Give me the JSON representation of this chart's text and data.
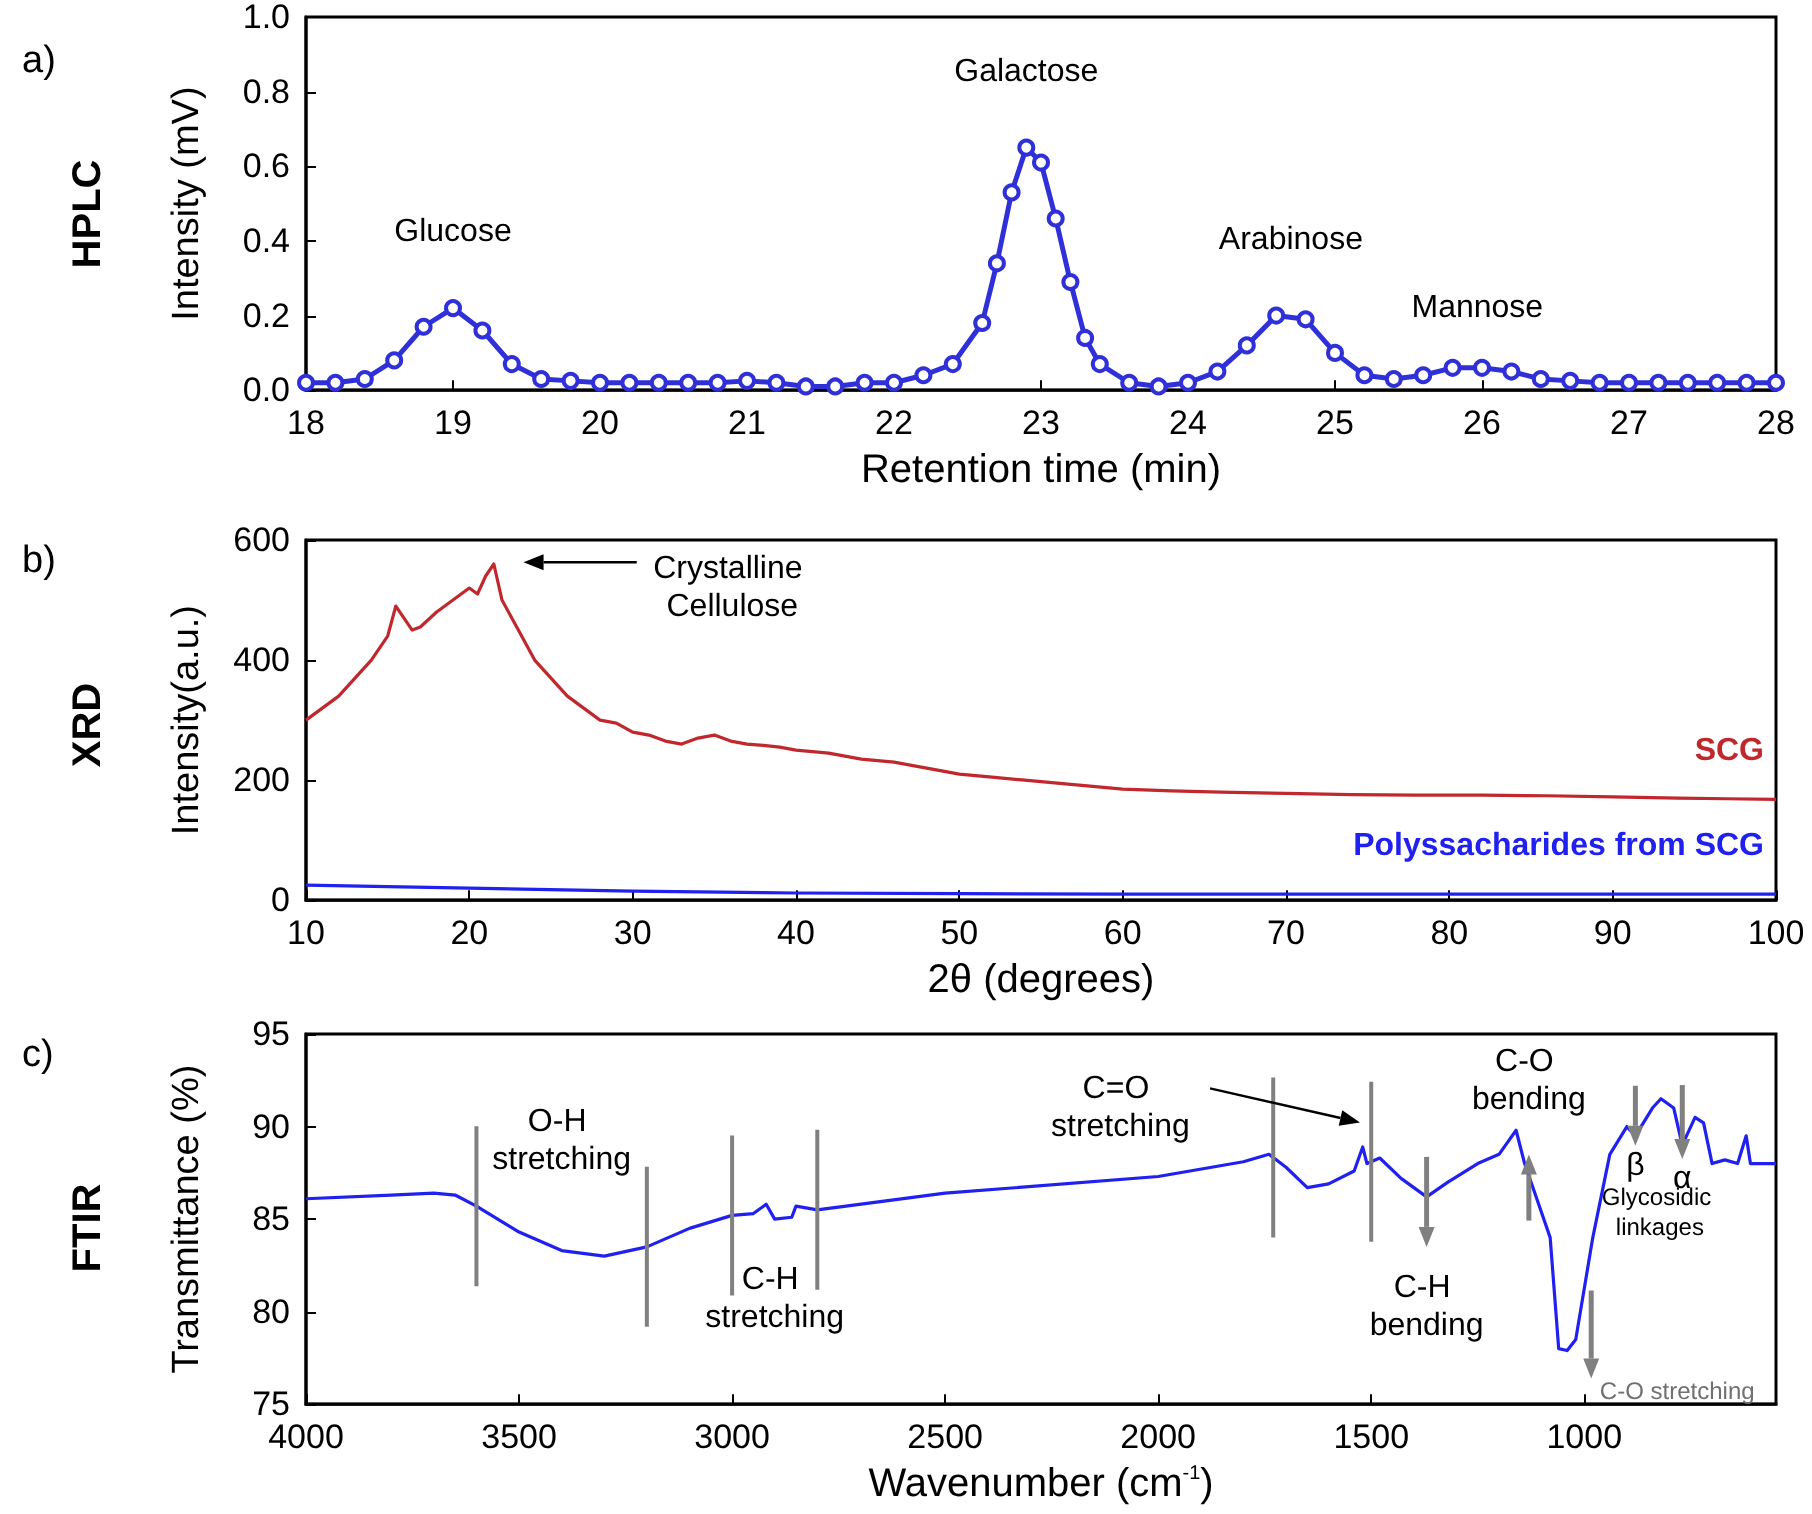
{
  "chart_data": [
    {
      "type": "line",
      "title": "a)",
      "subtitle": "HPLC",
      "xlabel": "Retention time (min)",
      "ylabel": "Intensity (mV)",
      "marker": "circle",
      "legend": false,
      "xlim": [
        18,
        28
      ],
      "xticks": [
        18,
        19,
        20,
        21,
        22,
        23,
        24,
        25,
        26,
        27,
        28
      ],
      "ylim": [
        0,
        1
      ],
      "yticks": [
        {
          "value": 0,
          "label": "0.0"
        },
        0.2,
        0.4,
        0.6,
        0.8,
        {
          "value": 1,
          "label": "1.0"
        }
      ],
      "series": [
        {
          "color": "#3030d8",
          "x": [
            18,
            18.2,
            18.4,
            18.6,
            18.8,
            19,
            19.2,
            19.4,
            19.6,
            19.8,
            20,
            20.2,
            20.4,
            20.6,
            20.8,
            21,
            21.2,
            21.4,
            21.6,
            21.8,
            22,
            22.2,
            22.4,
            22.6,
            22.7,
            22.8,
            22.9,
            23,
            23.1,
            23.2,
            23.3,
            23.4,
            23.6,
            23.8,
            24,
            24.2,
            24.4,
            24.6,
            24.8,
            25,
            25.2,
            25.4,
            25.6,
            25.8,
            26,
            26.2,
            26.4,
            26.6,
            26.8,
            27,
            27.2,
            27.4,
            27.6,
            27.8,
            28
          ],
          "values": [
            0.02,
            0.02,
            0.03,
            0.08,
            0.17,
            0.22,
            0.16,
            0.07,
            0.03,
            0.025,
            0.02,
            0.02,
            0.02,
            0.02,
            0.02,
            0.025,
            0.02,
            0.01,
            0.01,
            0.02,
            0.02,
            0.04,
            0.07,
            0.18,
            0.34,
            0.53,
            0.65,
            0.61,
            0.46,
            0.29,
            0.14,
            0.07,
            0.02,
            0.01,
            0.02,
            0.05,
            0.12,
            0.2,
            0.19,
            0.1,
            0.04,
            0.03,
            0.04,
            0.06,
            0.06,
            0.05,
            0.03,
            0.025,
            0.02,
            0.02,
            0.02,
            0.02,
            0.02,
            0.02,
            0.02
          ]
        }
      ],
      "annotations": [
        {
          "text": "Glucose",
          "x": 19,
          "y": 0.22
        },
        {
          "text": "Galactose",
          "x": 22.9,
          "y": 0.65
        },
        {
          "text": "Arabinose",
          "x": 24.7,
          "y": 0.2
        },
        {
          "text": "Mannose",
          "x": 25.9,
          "y": 0.06
        }
      ]
    },
    {
      "type": "line",
      "title": "b)",
      "subtitle": "XRD",
      "xlabel": "2θ (degrees)",
      "ylabel": "Intensity(a.u.)",
      "legend": false,
      "xlim": [
        10,
        100
      ],
      "xticks": [
        10,
        20,
        30,
        40,
        50,
        60,
        70,
        80,
        90,
        100
      ],
      "ylim": [
        0,
        600
      ],
      "yticks": [
        0,
        200,
        400,
        600
      ],
      "series": [
        {
          "name": "SCG",
          "color": "#c0282d",
          "x": [
            10,
            11,
            12,
            13,
            14,
            15,
            15.5,
            16,
            16.5,
            17,
            18,
            19,
            20,
            20.5,
            21,
            21.5,
            22,
            23,
            24,
            25,
            26,
            27,
            28,
            29,
            30,
            31,
            32,
            33,
            34,
            35,
            36,
            37,
            38,
            39,
            40,
            42,
            44,
            46,
            48,
            50,
            52,
            54,
            56,
            58,
            60,
            63,
            66,
            70,
            74,
            78,
            82,
            86,
            90,
            94,
            97,
            100
          ],
          "values": [
            300,
            320,
            340,
            370,
            400,
            440,
            490,
            470,
            450,
            455,
            480,
            500,
            520,
            510,
            540,
            560,
            500,
            450,
            400,
            370,
            340,
            320,
            300,
            295,
            280,
            275,
            265,
            260,
            270,
            275,
            265,
            260,
            258,
            255,
            250,
            245,
            235,
            230,
            220,
            210,
            205,
            200,
            195,
            190,
            185,
            182,
            180,
            178,
            176,
            175,
            175,
            174,
            172,
            170,
            169,
            168
          ]
        },
        {
          "name": "Polyssacharides from SCG",
          "color": "#2020f0",
          "x": [
            10,
            20,
            30,
            40,
            50,
            60,
            70,
            80,
            90,
            100
          ],
          "values": [
            25,
            20,
            15,
            12,
            11,
            10,
            10,
            10,
            10,
            10
          ]
        }
      ],
      "annotations": [
        "Crystalline Cellulose"
      ]
    },
    {
      "type": "line",
      "title": "c)",
      "subtitle": "FTIR",
      "xlabel": "Wavenumber (cm$^{-1}$)",
      "ylabel": "Transmittance (%)",
      "legend": false,
      "xlim": [
        4000,
        550
      ],
      "xticks": [
        4000,
        3500,
        3000,
        2500,
        2000,
        1500,
        1000
      ],
      "ylim": [
        75,
        95
      ],
      "yticks": [
        75,
        80,
        85,
        90,
        95
      ],
      "series": [
        {
          "color": "#2020f0",
          "x": [
            4000,
            3800,
            3700,
            3650,
            3600,
            3500,
            3400,
            3300,
            3200,
            3100,
            3000,
            2950,
            2920,
            2900,
            2860,
            2850,
            2800,
            2500,
            2000,
            1800,
            1740,
            1700,
            1650,
            1600,
            1540,
            1520,
            1510,
            1480,
            1430,
            1370,
            1320,
            1250,
            1200,
            1160,
            1140,
            1110,
            1080,
            1060,
            1040,
            1020,
            980,
            940,
            900,
            880,
            840,
            820,
            790,
            770,
            740,
            720,
            700,
            670,
            640,
            620,
            610,
            550
          ],
          "values": [
            86.1,
            86.3,
            86.4,
            86.3,
            85.7,
            84.3,
            83.3,
            83.0,
            83.5,
            84.5,
            85.2,
            85.3,
            85.8,
            85.0,
            85.1,
            85.7,
            85.5,
            86.4,
            87.3,
            88.1,
            88.5,
            87.8,
            86.7,
            86.9,
            87.6,
            88.9,
            88.0,
            88.3,
            87.2,
            86.2,
            87.0,
            88.0,
            88.5,
            89.8,
            88.0,
            86.0,
            84.0,
            78.0,
            77.9,
            78.5,
            84.0,
            88.5,
            90.0,
            89.5,
            91.0,
            91.5,
            91.0,
            89.0,
            90.5,
            90.2,
            88.0,
            88.2,
            88.0,
            89.5,
            88.0,
            88.0
          ]
        }
      ],
      "ref_lines": [
        {
          "axis": "x",
          "value": 3600,
          "color": "#808080"
        },
        {
          "axis": "x",
          "value": 3200,
          "color": "#808080"
        },
        {
          "axis": "x",
          "value": 3000,
          "color": "#808080"
        },
        {
          "axis": "x",
          "value": 2800,
          "color": "#808080"
        },
        {
          "axis": "x",
          "value": 1730,
          "color": "#808080"
        },
        {
          "axis": "x",
          "value": 1500,
          "color": "#808080"
        }
      ],
      "annotations": [
        {
          "text": "O-H stretching",
          "x": 3400,
          "y": 83.3
        },
        {
          "text": "C-H stretching",
          "x": 2900,
          "y": 85
        },
        "C=O stretching",
        {
          "text": "C-H bending",
          "x": 1370,
          "y": 86.2
        },
        {
          "text": "C-O bending",
          "x": 1130,
          "y": 86
        },
        {
          "text": "C-O stretching",
          "x": 1040,
          "y": 77.9
        },
        {
          "text": "β",
          "x": 880,
          "y": 89.5
        },
        {
          "text": "α",
          "x": 770,
          "y": 89
        },
        "Glycosidic linkages"
      ]
    }
  ]
}
